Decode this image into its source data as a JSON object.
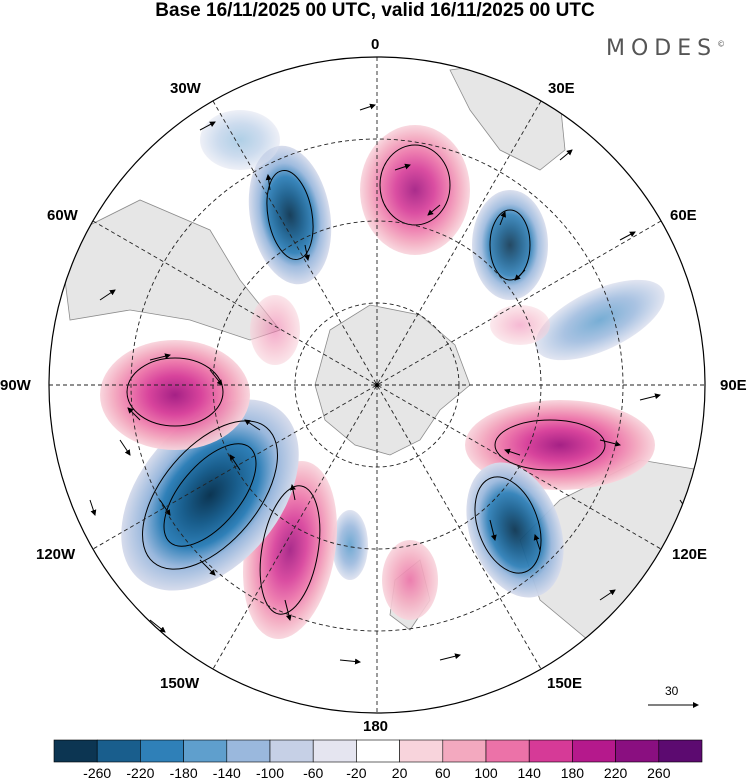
{
  "title": "Base 16/11/2025 00 UTC, valid 16/11/2025 00 UTC",
  "brand": "MODES",
  "brand_mark": "©",
  "map": {
    "projection": "south-polar-stereographic",
    "longitude_labels": {
      "top": "0",
      "top_right": "30E",
      "upper_right": "60E",
      "right": "90E",
      "lower_right": "120E",
      "bottom_right": "150E",
      "bottom": "180",
      "bottom_left": "150W",
      "lower_left": "120W",
      "left": "90W",
      "upper_left": "60W",
      "top_left": "30W"
    },
    "reference_vector_value": "30",
    "colors": {
      "land": "#e6e6e6",
      "coast": "#8c8c8c",
      "grid": "#222222",
      "positive_strong": "#b5198c",
      "negative_strong": "#0e3f68"
    }
  },
  "colorbar": {
    "labels": [
      "-260",
      "-220",
      "-180",
      "-140",
      "-100",
      "-60",
      "-20",
      "20",
      "60",
      "100",
      "140",
      "180",
      "220",
      "260"
    ],
    "colors": [
      "#0c3552",
      "#195e8d",
      "#2f80b8",
      "#5f9fcd",
      "#9ab8dd",
      "#c6d0e6",
      "#e5e5f0",
      "#ffffff",
      "#f8d4dc",
      "#f3a9bf",
      "#ec72a8",
      "#d63a97",
      "#b5198c",
      "#8a0f80",
      "#5c0a70"
    ]
  }
}
